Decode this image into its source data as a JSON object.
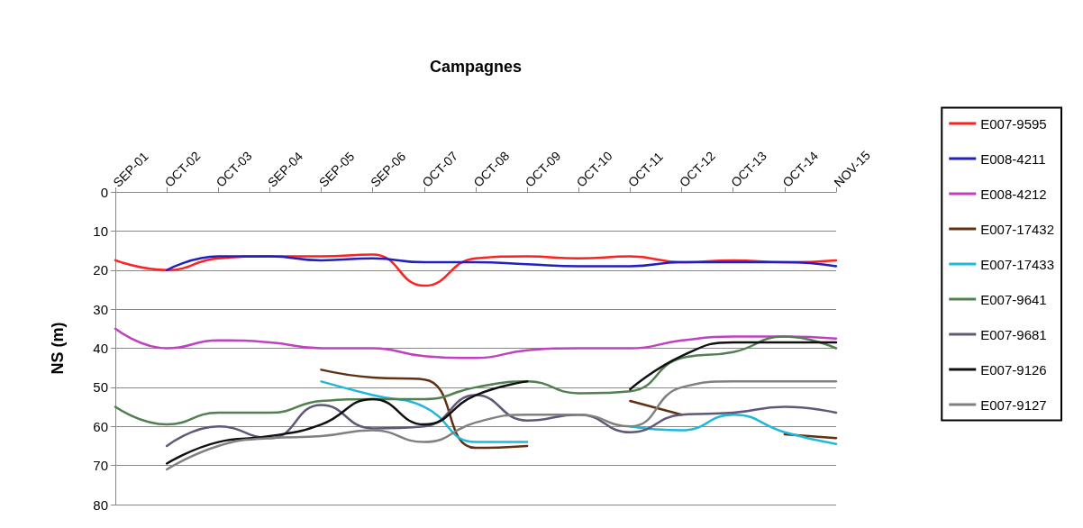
{
  "chart_data": {
    "type": "line",
    "xlabel": "Campagnes",
    "ylabel": "NS (m)",
    "categories": [
      "SEP-01",
      "OCT-02",
      "OCT-03",
      "SEP-04",
      "SEP-05",
      "SEP-06",
      "OCT-07",
      "OCT-08",
      "OCT-09",
      "OCT-10",
      "OCT-11",
      "OCT-12",
      "OCT-13",
      "OCT-14",
      "NOV-15"
    ],
    "ylim": [
      80,
      0
    ],
    "yticks": [
      0,
      10,
      20,
      30,
      40,
      50,
      60,
      70,
      80
    ],
    "grid": "y",
    "legend": "right",
    "marker": "none",
    "line_style": "solid",
    "series": [
      {
        "name": "E007-9595",
        "color": "#ff2020",
        "values": [
          17.5,
          20,
          17,
          16.5,
          16.5,
          16,
          24,
          17,
          16.5,
          17,
          16.5,
          18,
          17.5,
          18,
          17.5
        ]
      },
      {
        "name": "E008-4211",
        "color": "#2020c0",
        "values": [
          null,
          20,
          16.5,
          16.5,
          17.5,
          17,
          18,
          18,
          18.5,
          19,
          19,
          18,
          18,
          18,
          19
        ]
      },
      {
        "name": "E008-4212",
        "color": "#c040c0",
        "values": [
          35,
          40,
          38,
          38.5,
          40,
          40,
          42,
          42.5,
          40.5,
          40,
          40,
          38,
          37,
          37,
          37.5
        ]
      },
      {
        "name": "E007-17432",
        "color": "#603010",
        "values": [
          null,
          null,
          null,
          null,
          45.5,
          47.5,
          48,
          65.5,
          65,
          null,
          53.5,
          57,
          null,
          62,
          63
        ]
      },
      {
        "name": "E007-17433",
        "color": "#20b8d8",
        "values": [
          null,
          null,
          null,
          null,
          48.5,
          52,
          55,
          64,
          64,
          null,
          60,
          61,
          57,
          61.5,
          64.5
        ]
      },
      {
        "name": "E007-9641",
        "color": "#508050",
        "values": [
          55,
          59.5,
          56.5,
          56.5,
          53.5,
          53,
          53,
          50,
          48.5,
          51.5,
          51,
          42.5,
          41,
          37,
          40
        ]
      },
      {
        "name": "E007-9681",
        "color": "#605878",
        "values": [
          null,
          65,
          60,
          63,
          54.5,
          60.5,
          60,
          52,
          58.5,
          57,
          61.5,
          57,
          56.5,
          55,
          56.5
        ]
      },
      {
        "name": "E007-9126",
        "color": "#101010",
        "values": [
          null,
          69.5,
          64,
          62.5,
          59.5,
          53,
          59.5,
          52,
          48.5,
          null,
          50.5,
          42,
          38.5,
          38.5,
          38.5
        ]
      },
      {
        "name": "E007-9127",
        "color": "#808080",
        "values": [
          null,
          71,
          65,
          63,
          62.5,
          61,
          64,
          59,
          57,
          57,
          60,
          50,
          48.5,
          48.5,
          48.5
        ]
      }
    ]
  }
}
